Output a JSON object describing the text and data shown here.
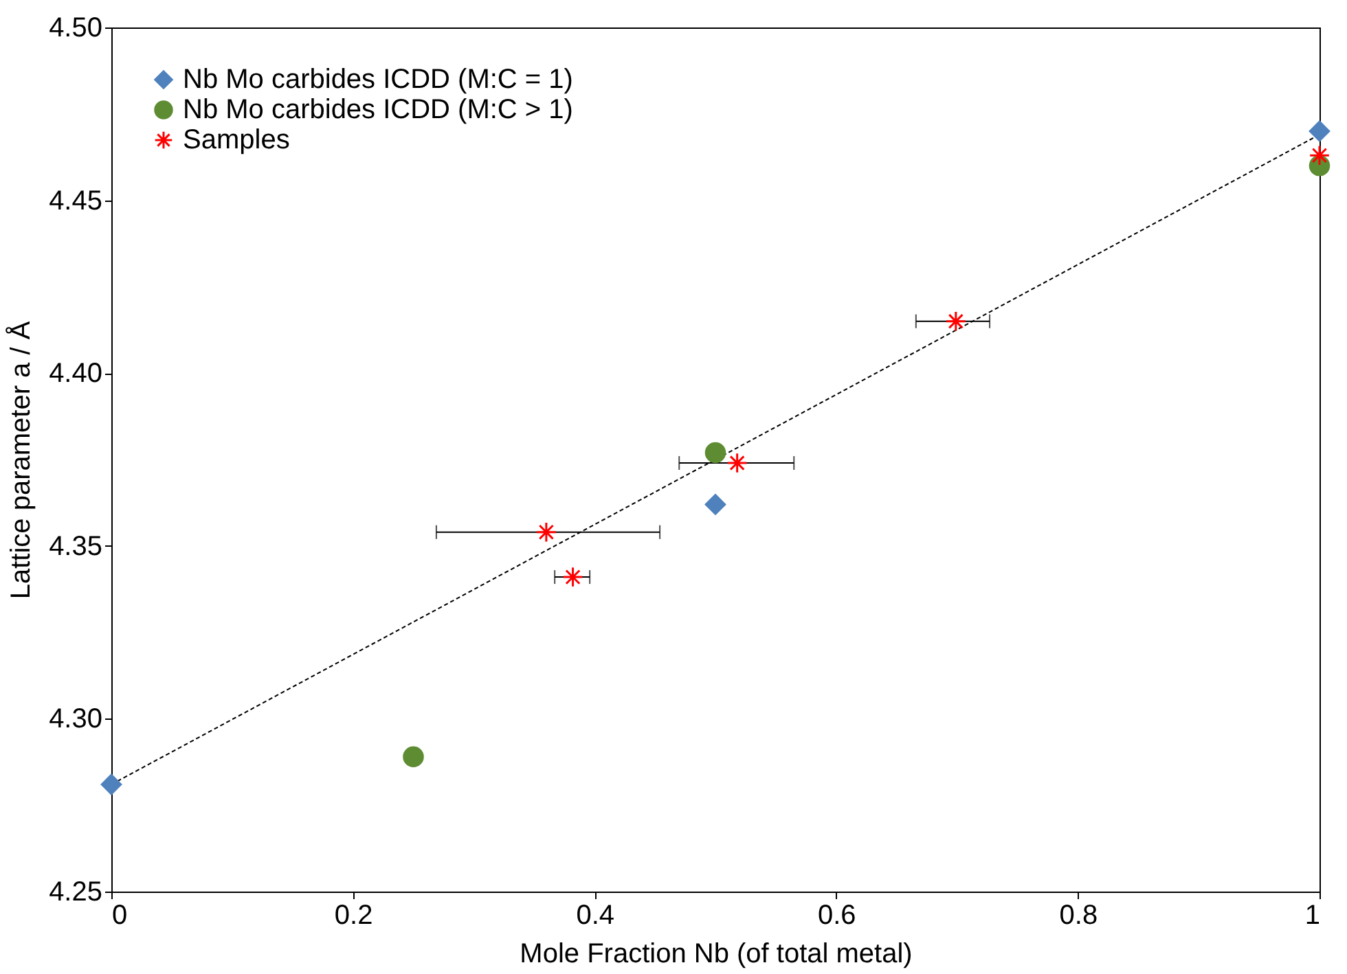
{
  "chart_data": {
    "type": "scatter",
    "xlabel": "Mole Fraction Nb (of total metal)",
    "ylabel": "Lattice parameter a / Å",
    "xlim": [
      0,
      1
    ],
    "xticks": [
      0,
      0.2,
      0.4,
      0.6,
      0.8,
      1
    ],
    "ylim": [
      4.25,
      4.5
    ],
    "yticks": [
      {
        "value": 4.25,
        "label": "4.25"
      },
      {
        "value": 4.3,
        "label": "4.30"
      },
      {
        "value": 4.35,
        "label": "4.35"
      },
      {
        "value": 4.4,
        "label": "4.40"
      },
      {
        "value": 4.45,
        "label": "4.45"
      },
      {
        "value": 4.5,
        "label": "4.50"
      }
    ],
    "grid": false,
    "legend": "top left",
    "series": [
      {
        "name": "Nb Mo carbides ICDD (M:C = 1)",
        "color": "#4f81bd",
        "marker": "diamond",
        "x": [
          0,
          0.5,
          1
        ],
        "values": [
          4.281,
          4.362,
          4.47
        ]
      },
      {
        "name": "Nb Mo carbides ICDD (M:C > 1)",
        "color": "#5e8c32",
        "marker": "circle",
        "x": [
          0.25,
          0.5,
          1
        ],
        "values": [
          4.289,
          4.377,
          4.46
        ]
      },
      {
        "name": "Samples",
        "color": "#ff0000",
        "marker": "cross",
        "x": [
          0.36,
          0.382,
          0.518,
          0.699,
          1
        ],
        "values": [
          4.354,
          4.341,
          4.374,
          4.415,
          4.463
        ],
        "xerrors": [
          [
            0.269,
            0.454
          ],
          [
            0.367,
            0.396
          ],
          [
            0.47,
            0.565
          ],
          [
            0.666,
            0.727
          ],
          null
        ]
      },
      {
        "type": "line",
        "color": "#000000",
        "line_style": "dashed",
        "x": [
          0,
          1
        ],
        "values": [
          4.281,
          4.469
        ]
      }
    ]
  }
}
